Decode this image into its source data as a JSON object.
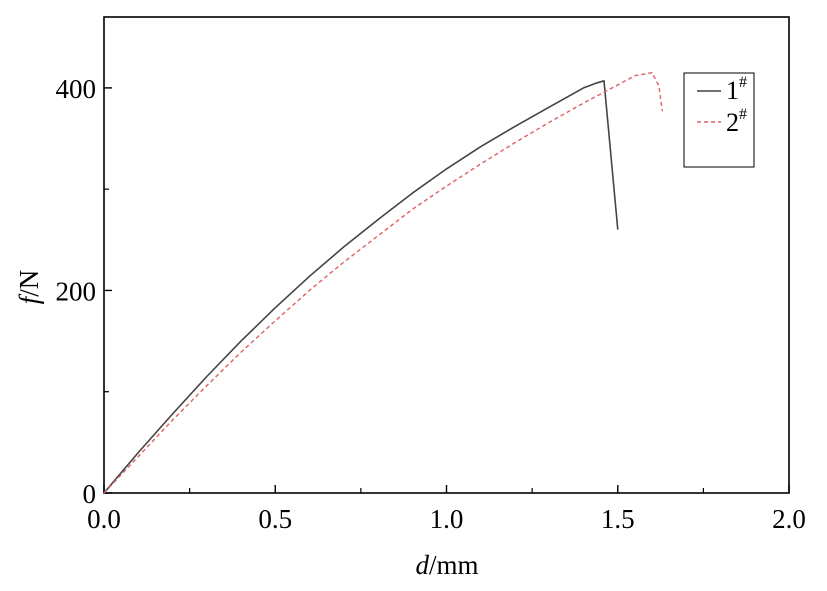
{
  "chart_data": {
    "type": "line",
    "title": "",
    "xlabel": {
      "var": "d",
      "unit": "/mm"
    },
    "ylabel": {
      "var": "f",
      "unit": "/N"
    },
    "xlim": [
      0,
      2.0
    ],
    "ylim": [
      0,
      470
    ],
    "xticks": [
      0,
      0.5,
      1.0,
      1.5,
      2.0
    ],
    "xtick_labels": [
      "0.0",
      "0.5",
      "1.0",
      "1.5",
      "2.0"
    ],
    "yticks": [
      0,
      200,
      400
    ],
    "ytick_labels": [
      "0",
      "200",
      "400"
    ],
    "grid": false,
    "legend_position": "top-right",
    "series": [
      {
        "name": "1#",
        "label_main": "1",
        "label_sup": "#",
        "color": "#444444",
        "dash": "solid",
        "x": [
          0,
          0.1,
          0.2,
          0.3,
          0.4,
          0.5,
          0.6,
          0.7,
          0.8,
          0.9,
          1.0,
          1.1,
          1.2,
          1.3,
          1.4,
          1.44,
          1.46,
          1.5
        ],
        "y": [
          0,
          40,
          78,
          115,
          150,
          183,
          214,
          243,
          270,
          296,
          320,
          342,
          362,
          381,
          400,
          405,
          407,
          260
        ]
      },
      {
        "name": "2#",
        "label_main": "2",
        "label_sup": "#",
        "color": "#e06060",
        "dash": "dashed",
        "x": [
          0,
          0.1,
          0.2,
          0.3,
          0.4,
          0.5,
          0.6,
          0.7,
          0.8,
          0.9,
          1.0,
          1.1,
          1.2,
          1.3,
          1.4,
          1.5,
          1.55,
          1.6,
          1.62,
          1.63
        ],
        "y": [
          0,
          36,
          72,
          106,
          139,
          170,
          200,
          228,
          254,
          280,
          303,
          325,
          346,
          366,
          385,
          403,
          412,
          415,
          402,
          377
        ]
      }
    ]
  }
}
